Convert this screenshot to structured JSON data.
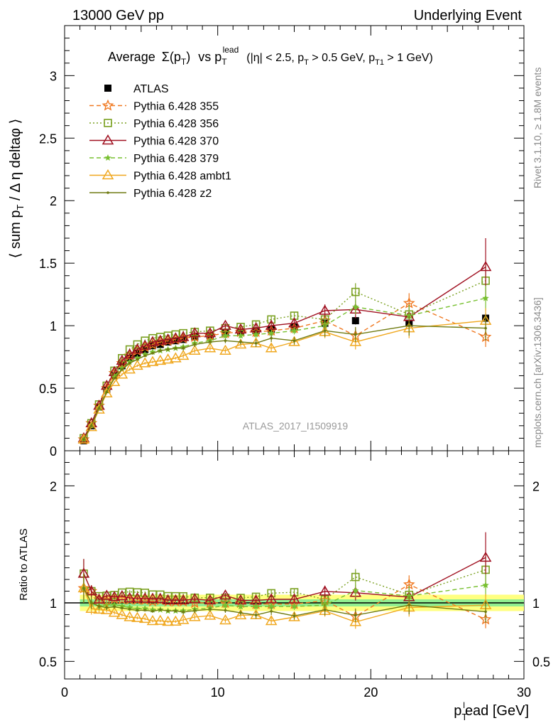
{
  "header": {
    "left": "13000 GeV pp",
    "right": "Underlying Event"
  },
  "plot_title": {
    "prefix": "Average",
    "sigma": "Σ(p",
    "sigma_sub": "T",
    "sigma_close": ")",
    "vs": "vs p",
    "vs_sub": "T",
    "vs_sup": "lead",
    "cuts_a": "(|η| < 2.5, p",
    "cuts_b": "T",
    "cuts_c": " > 0.5 GeV, p",
    "cuts_d": "T1",
    "cuts_e": " > 1 GeV)"
  },
  "y_label_main": {
    "a": "⟨ sum p",
    "b": "T",
    "c": " / Δ η deltaφ ⟩"
  },
  "y_label_ratio": "Ratio to ATLAS",
  "x_label": {
    "a": "p",
    "b": "T",
    "c": "l",
    "d": "ead [GeV]"
  },
  "side_text": {
    "rivet": "Rivet 3.1.10, ≥ 1.8M events",
    "mcplots": "mcplots.cern.ch [arXiv:1306.3436]"
  },
  "watermark": "ATLAS_2017_I1509919",
  "colors": {
    "atlas": "#000000",
    "p355": "#f07820",
    "p356": "#7aa020",
    "p370": "#a01020",
    "p379": "#78c030",
    "ambt1": "#f0a820",
    "z2": "#6e7a10",
    "band_inner": "#90ee90",
    "band_outer": "#ffff80"
  },
  "chart_data": {
    "type": "line",
    "x_range": [
      0,
      30
    ],
    "main_ylim": [
      0,
      3.4
    ],
    "ratio_ylim": [
      0.35,
      2.3
    ],
    "x_ticks": [
      "0",
      "10",
      "20",
      "30"
    ],
    "main_y_ticks": [
      "0",
      "0.5",
      "1",
      "1.5",
      "2",
      "2.5",
      "3"
    ],
    "ratio_y_ticks": [
      "0.5",
      "1",
      "2"
    ],
    "legend_position": "top-left",
    "x": [
      1.25,
      1.75,
      2.25,
      2.75,
      3.25,
      3.75,
      4.25,
      4.75,
      5.25,
      5.75,
      6.25,
      6.75,
      7.25,
      7.75,
      8.5,
      9.5,
      10.5,
      11.5,
      12.5,
      13.5,
      15.0,
      17.0,
      19.0,
      22.5,
      27.5
    ],
    "series": [
      {
        "name": "ATLAS",
        "key": "atlas",
        "marker": "square-filled",
        "line": "none",
        "values": [
          0.08,
          0.2,
          0.35,
          0.49,
          0.6,
          0.68,
          0.74,
          0.78,
          0.81,
          0.84,
          0.85,
          0.87,
          0.88,
          0.89,
          0.91,
          0.92,
          0.94,
          0.95,
          0.96,
          0.97,
          0.99,
          1.02,
          1.04,
          1.02,
          1.06
        ],
        "errors": [
          0.01,
          0.01,
          0.01,
          0.01,
          0.01,
          0.01,
          0.01,
          0.01,
          0.01,
          0.01,
          0.01,
          0.01,
          0.01,
          0.01,
          0.01,
          0.01,
          0.01,
          0.02,
          0.02,
          0.02,
          0.02,
          0.03,
          0.03,
          0.03,
          0.04
        ]
      },
      {
        "name": "Pythia 6.428 355",
        "key": "p355",
        "marker": "star-open",
        "line": "dashed",
        "values": [
          0.09,
          0.22,
          0.36,
          0.5,
          0.62,
          0.7,
          0.76,
          0.8,
          0.83,
          0.85,
          0.87,
          0.88,
          0.89,
          0.9,
          0.91,
          0.92,
          0.94,
          0.95,
          0.95,
          0.96,
          0.98,
          1.04,
          0.92,
          1.18,
          0.91
        ],
        "errors": [
          0.01,
          0.01,
          0.01,
          0.01,
          0.01,
          0.01,
          0.01,
          0.01,
          0.01,
          0.01,
          0.01,
          0.01,
          0.01,
          0.02,
          0.02,
          0.02,
          0.02,
          0.02,
          0.03,
          0.03,
          0.03,
          0.05,
          0.06,
          0.08,
          0.08
        ]
      },
      {
        "name": "Pythia 6.428 356",
        "key": "p356",
        "marker": "square-open",
        "line": "dotted",
        "values": [
          0.1,
          0.22,
          0.37,
          0.52,
          0.64,
          0.74,
          0.81,
          0.85,
          0.88,
          0.9,
          0.91,
          0.92,
          0.93,
          0.94,
          0.95,
          0.96,
          0.98,
          0.99,
          1.01,
          1.05,
          1.08,
          1.05,
          1.27,
          1.09,
          1.36
        ],
        "errors": [
          0.01,
          0.01,
          0.01,
          0.01,
          0.01,
          0.01,
          0.01,
          0.01,
          0.01,
          0.01,
          0.01,
          0.01,
          0.01,
          0.02,
          0.02,
          0.02,
          0.02,
          0.02,
          0.03,
          0.03,
          0.03,
          0.05,
          0.07,
          0.08,
          0.15
        ]
      },
      {
        "name": "Pythia 6.428 370",
        "key": "p370",
        "marker": "triangle-open",
        "line": "solid",
        "values": [
          0.1,
          0.22,
          0.36,
          0.52,
          0.63,
          0.72,
          0.77,
          0.81,
          0.84,
          0.87,
          0.88,
          0.89,
          0.9,
          0.91,
          0.94,
          0.94,
          1.0,
          0.97,
          0.98,
          1.0,
          1.02,
          1.12,
          1.13,
          1.07,
          1.47
        ],
        "errors": [
          0.01,
          0.01,
          0.01,
          0.01,
          0.01,
          0.01,
          0.01,
          0.01,
          0.01,
          0.01,
          0.01,
          0.01,
          0.01,
          0.02,
          0.02,
          0.02,
          0.02,
          0.02,
          0.03,
          0.03,
          0.03,
          0.05,
          0.07,
          0.08,
          0.23
        ]
      },
      {
        "name": "Pythia 6.428 379",
        "key": "p379",
        "marker": "star-filled",
        "line": "dashed",
        "values": [
          0.09,
          0.2,
          0.34,
          0.48,
          0.59,
          0.66,
          0.71,
          0.74,
          0.77,
          0.79,
          0.8,
          0.81,
          0.82,
          0.83,
          0.86,
          0.88,
          0.92,
          0.92,
          0.93,
          0.94,
          0.96,
          1.0,
          1.15,
          1.08,
          1.22
        ],
        "errors": [
          0.01,
          0.01,
          0.01,
          0.01,
          0.01,
          0.01,
          0.01,
          0.01,
          0.01,
          0.01,
          0.01,
          0.01,
          0.01,
          0.02,
          0.02,
          0.02,
          0.02,
          0.02,
          0.03,
          0.03,
          0.03,
          0.05,
          0.06,
          0.08,
          0.1
        ]
      },
      {
        "name": "Pythia 6.428 ambt1",
        "key": "ambt1",
        "marker": "triangle-open",
        "line": "solid",
        "values": [
          0.09,
          0.19,
          0.33,
          0.46,
          0.55,
          0.61,
          0.65,
          0.68,
          0.7,
          0.71,
          0.72,
          0.73,
          0.74,
          0.76,
          0.8,
          0.82,
          0.8,
          0.85,
          0.86,
          0.82,
          0.87,
          0.95,
          0.87,
          0.98,
          1.04
        ],
        "errors": [
          0.01,
          0.01,
          0.01,
          0.01,
          0.01,
          0.01,
          0.01,
          0.01,
          0.01,
          0.01,
          0.01,
          0.01,
          0.01,
          0.02,
          0.02,
          0.02,
          0.02,
          0.02,
          0.03,
          0.03,
          0.03,
          0.05,
          0.06,
          0.08,
          0.1
        ]
      },
      {
        "name": "Pythia 6.428 z2",
        "key": "z2",
        "marker": "dot",
        "line": "solid",
        "values": [
          0.09,
          0.2,
          0.34,
          0.47,
          0.58,
          0.65,
          0.7,
          0.73,
          0.76,
          0.78,
          0.8,
          0.81,
          0.82,
          0.82,
          0.85,
          0.87,
          0.88,
          0.87,
          0.86,
          0.9,
          0.88,
          0.96,
          0.93,
          1.0,
          0.98
        ],
        "errors": [
          0.01,
          0.01,
          0.01,
          0.01,
          0.01,
          0.01,
          0.01,
          0.01,
          0.01,
          0.01,
          0.01,
          0.01,
          0.01,
          0.02,
          0.02,
          0.02,
          0.02,
          0.02,
          0.03,
          0.03,
          0.03,
          0.05,
          0.06,
          0.08,
          0.1
        ]
      }
    ]
  }
}
